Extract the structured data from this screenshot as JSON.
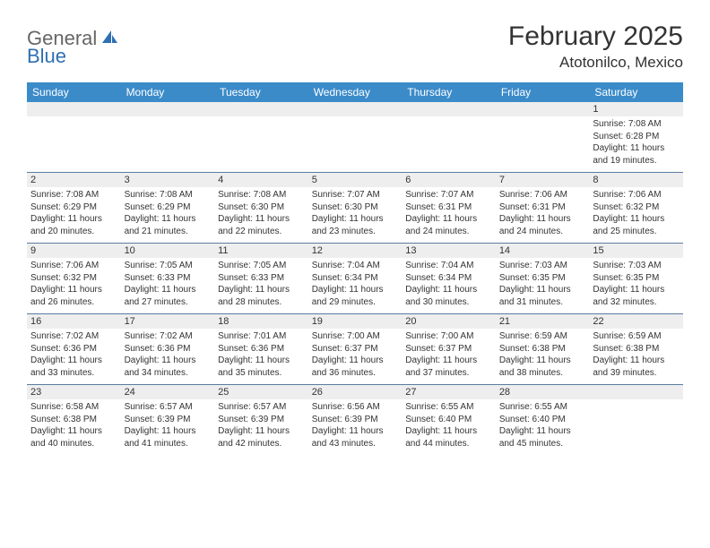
{
  "brand": {
    "part1": "General",
    "part2": "Blue"
  },
  "title": "February 2025",
  "location": "Atotonilco, Mexico",
  "colors": {
    "header_bg": "#3b8bc9",
    "header_text": "#ffffff",
    "daynum_bg": "#eeeeee",
    "row_border": "#5a7ca0",
    "text": "#333333",
    "logo_gray": "#666666",
    "logo_blue": "#2f6fb3",
    "page_bg": "#ffffff"
  },
  "weekdays": [
    "Sunday",
    "Monday",
    "Tuesday",
    "Wednesday",
    "Thursday",
    "Friday",
    "Saturday"
  ],
  "weeks": [
    {
      "nums": [
        "",
        "",
        "",
        "",
        "",
        "",
        "1"
      ],
      "cells": [
        null,
        null,
        null,
        null,
        null,
        null,
        {
          "sunrise": "Sunrise: 7:08 AM",
          "sunset": "Sunset: 6:28 PM",
          "day1": "Daylight: 11 hours",
          "day2": "and 19 minutes."
        }
      ]
    },
    {
      "nums": [
        "2",
        "3",
        "4",
        "5",
        "6",
        "7",
        "8"
      ],
      "cells": [
        {
          "sunrise": "Sunrise: 7:08 AM",
          "sunset": "Sunset: 6:29 PM",
          "day1": "Daylight: 11 hours",
          "day2": "and 20 minutes."
        },
        {
          "sunrise": "Sunrise: 7:08 AM",
          "sunset": "Sunset: 6:29 PM",
          "day1": "Daylight: 11 hours",
          "day2": "and 21 minutes."
        },
        {
          "sunrise": "Sunrise: 7:08 AM",
          "sunset": "Sunset: 6:30 PM",
          "day1": "Daylight: 11 hours",
          "day2": "and 22 minutes."
        },
        {
          "sunrise": "Sunrise: 7:07 AM",
          "sunset": "Sunset: 6:30 PM",
          "day1": "Daylight: 11 hours",
          "day2": "and 23 minutes."
        },
        {
          "sunrise": "Sunrise: 7:07 AM",
          "sunset": "Sunset: 6:31 PM",
          "day1": "Daylight: 11 hours",
          "day2": "and 24 minutes."
        },
        {
          "sunrise": "Sunrise: 7:06 AM",
          "sunset": "Sunset: 6:31 PM",
          "day1": "Daylight: 11 hours",
          "day2": "and 24 minutes."
        },
        {
          "sunrise": "Sunrise: 7:06 AM",
          "sunset": "Sunset: 6:32 PM",
          "day1": "Daylight: 11 hours",
          "day2": "and 25 minutes."
        }
      ]
    },
    {
      "nums": [
        "9",
        "10",
        "11",
        "12",
        "13",
        "14",
        "15"
      ],
      "cells": [
        {
          "sunrise": "Sunrise: 7:06 AM",
          "sunset": "Sunset: 6:32 PM",
          "day1": "Daylight: 11 hours",
          "day2": "and 26 minutes."
        },
        {
          "sunrise": "Sunrise: 7:05 AM",
          "sunset": "Sunset: 6:33 PM",
          "day1": "Daylight: 11 hours",
          "day2": "and 27 minutes."
        },
        {
          "sunrise": "Sunrise: 7:05 AM",
          "sunset": "Sunset: 6:33 PM",
          "day1": "Daylight: 11 hours",
          "day2": "and 28 minutes."
        },
        {
          "sunrise": "Sunrise: 7:04 AM",
          "sunset": "Sunset: 6:34 PM",
          "day1": "Daylight: 11 hours",
          "day2": "and 29 minutes."
        },
        {
          "sunrise": "Sunrise: 7:04 AM",
          "sunset": "Sunset: 6:34 PM",
          "day1": "Daylight: 11 hours",
          "day2": "and 30 minutes."
        },
        {
          "sunrise": "Sunrise: 7:03 AM",
          "sunset": "Sunset: 6:35 PM",
          "day1": "Daylight: 11 hours",
          "day2": "and 31 minutes."
        },
        {
          "sunrise": "Sunrise: 7:03 AM",
          "sunset": "Sunset: 6:35 PM",
          "day1": "Daylight: 11 hours",
          "day2": "and 32 minutes."
        }
      ]
    },
    {
      "nums": [
        "16",
        "17",
        "18",
        "19",
        "20",
        "21",
        "22"
      ],
      "cells": [
        {
          "sunrise": "Sunrise: 7:02 AM",
          "sunset": "Sunset: 6:36 PM",
          "day1": "Daylight: 11 hours",
          "day2": "and 33 minutes."
        },
        {
          "sunrise": "Sunrise: 7:02 AM",
          "sunset": "Sunset: 6:36 PM",
          "day1": "Daylight: 11 hours",
          "day2": "and 34 minutes."
        },
        {
          "sunrise": "Sunrise: 7:01 AM",
          "sunset": "Sunset: 6:36 PM",
          "day1": "Daylight: 11 hours",
          "day2": "and 35 minutes."
        },
        {
          "sunrise": "Sunrise: 7:00 AM",
          "sunset": "Sunset: 6:37 PM",
          "day1": "Daylight: 11 hours",
          "day2": "and 36 minutes."
        },
        {
          "sunrise": "Sunrise: 7:00 AM",
          "sunset": "Sunset: 6:37 PM",
          "day1": "Daylight: 11 hours",
          "day2": "and 37 minutes."
        },
        {
          "sunrise": "Sunrise: 6:59 AM",
          "sunset": "Sunset: 6:38 PM",
          "day1": "Daylight: 11 hours",
          "day2": "and 38 minutes."
        },
        {
          "sunrise": "Sunrise: 6:59 AM",
          "sunset": "Sunset: 6:38 PM",
          "day1": "Daylight: 11 hours",
          "day2": "and 39 minutes."
        }
      ]
    },
    {
      "nums": [
        "23",
        "24",
        "25",
        "26",
        "27",
        "28",
        ""
      ],
      "cells": [
        {
          "sunrise": "Sunrise: 6:58 AM",
          "sunset": "Sunset: 6:38 PM",
          "day1": "Daylight: 11 hours",
          "day2": "and 40 minutes."
        },
        {
          "sunrise": "Sunrise: 6:57 AM",
          "sunset": "Sunset: 6:39 PM",
          "day1": "Daylight: 11 hours",
          "day2": "and 41 minutes."
        },
        {
          "sunrise": "Sunrise: 6:57 AM",
          "sunset": "Sunset: 6:39 PM",
          "day1": "Daylight: 11 hours",
          "day2": "and 42 minutes."
        },
        {
          "sunrise": "Sunrise: 6:56 AM",
          "sunset": "Sunset: 6:39 PM",
          "day1": "Daylight: 11 hours",
          "day2": "and 43 minutes."
        },
        {
          "sunrise": "Sunrise: 6:55 AM",
          "sunset": "Sunset: 6:40 PM",
          "day1": "Daylight: 11 hours",
          "day2": "and 44 minutes."
        },
        {
          "sunrise": "Sunrise: 6:55 AM",
          "sunset": "Sunset: 6:40 PM",
          "day1": "Daylight: 11 hours",
          "day2": "and 45 minutes."
        },
        null
      ]
    }
  ]
}
